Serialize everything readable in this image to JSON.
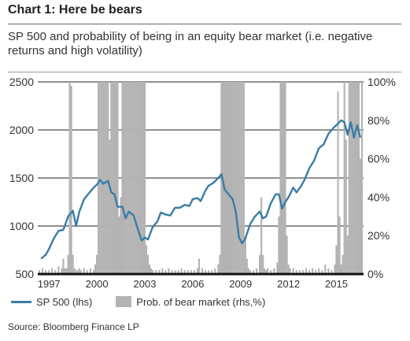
{
  "title": "Chart 1: Here be bears",
  "subtitle": "SP 500 and probability of being in an equity bear market (i.e. negative returns and high volatility)",
  "source": "Source: Bloomberg Finance LP",
  "colors": {
    "sp500": "#3a7ca5",
    "probability": "#b3b3b3",
    "gridline": "#222222",
    "baseline": "#111111"
  },
  "chart_data": {
    "type": "line",
    "legend_position": "bottom",
    "legend": {
      "sp500": "SP 500 (lhs)",
      "probability": "Prob. of bear market (rhs,%)"
    },
    "x_ticks": [
      "1997",
      "2000",
      "2003",
      "2006",
      "2009",
      "2012",
      "2015"
    ],
    "x_tick_values": [
      1997,
      2000,
      2003,
      2006,
      2009,
      2012,
      2015
    ],
    "xlim": [
      1996.3,
      2016.7
    ],
    "left_axis": {
      "ylim": [
        500,
        2500
      ],
      "ticks": [
        500,
        1000,
        1500,
        2000,
        2500
      ],
      "tick_labels": [
        "500",
        "1000",
        "1500",
        "2000",
        "2500"
      ]
    },
    "right_axis": {
      "ylim": [
        0,
        100
      ],
      "ticks": [
        0,
        20,
        40,
        60,
        80,
        100
      ],
      "tick_labels": [
        "0%",
        "20%",
        "40%",
        "60%",
        "80%",
        "100%"
      ]
    },
    "gridlines": [
      1000,
      1500,
      2000,
      2500
    ],
    "series": [
      {
        "name": "SP 500 (lhs)",
        "axis": "left",
        "style": "line",
        "x": [
          1996.5,
          1996.8,
          1997.0,
          1997.3,
          1997.6,
          1997.9,
          1998.2,
          1998.5,
          1998.7,
          1998.9,
          1999.2,
          1999.5,
          1999.8,
          2000.0,
          2000.2,
          2000.4,
          2000.7,
          2000.9,
          2001.1,
          2001.3,
          2001.6,
          2001.8,
          2002.0,
          2002.3,
          2002.6,
          2002.8,
          2003.0,
          2003.2,
          2003.5,
          2003.8,
          2004.0,
          2004.3,
          2004.6,
          2004.9,
          2005.2,
          2005.5,
          2005.8,
          2006.0,
          2006.3,
          2006.5,
          2006.8,
          2007.0,
          2007.3,
          2007.6,
          2007.8,
          2008.0,
          2008.3,
          2008.5,
          2008.7,
          2008.9,
          2009.1,
          2009.3,
          2009.6,
          2009.9,
          2010.2,
          2010.4,
          2010.6,
          2010.9,
          2011.2,
          2011.4,
          2011.6,
          2011.8,
          2012.0,
          2012.3,
          2012.5,
          2012.8,
          2013.0,
          2013.3,
          2013.6,
          2013.9,
          2014.2,
          2014.5,
          2014.8,
          2015.0,
          2015.3,
          2015.5,
          2015.7,
          2015.9,
          2016.1,
          2016.3,
          2016.5
        ],
        "values": [
          660,
          700,
          760,
          870,
          950,
          960,
          1100,
          1160,
          1000,
          1150,
          1280,
          1340,
          1400,
          1430,
          1480,
          1440,
          1470,
          1350,
          1330,
          1200,
          1200,
          1080,
          1150,
          1110,
          950,
          850,
          880,
          860,
          990,
          1050,
          1140,
          1120,
          1110,
          1190,
          1190,
          1220,
          1210,
          1280,
          1290,
          1260,
          1370,
          1420,
          1450,
          1500,
          1540,
          1380,
          1320,
          1280,
          1150,
          880,
          820,
          870,
          1020,
          1100,
          1150,
          1080,
          1100,
          1240,
          1330,
          1330,
          1180,
          1250,
          1300,
          1400,
          1350,
          1420,
          1480,
          1600,
          1680,
          1810,
          1850,
          1960,
          2020,
          2050,
          2100,
          2080,
          1950,
          2080,
          1920,
          2050,
          1920
        ]
      },
      {
        "name": "Prob. of bear market (rhs,%)",
        "axis": "right",
        "style": "bars",
        "x": [
          1996.4,
          1996.6,
          1996.8,
          1997.0,
          1997.2,
          1997.4,
          1997.6,
          1997.8,
          1997.9,
          1998.0,
          1998.1,
          1998.2,
          1998.3,
          1998.4,
          1998.5,
          1998.6,
          1998.7,
          1998.8,
          1998.9,
          1999.0,
          1999.2,
          1999.4,
          1999.6,
          1999.8,
          1999.9,
          2000.0,
          2000.1,
          2000.2,
          2000.3,
          2000.4,
          2000.5,
          2000.6,
          2000.7,
          2000.8,
          2000.9,
          2001.0,
          2001.1,
          2001.2,
          2001.3,
          2001.4,
          2001.5,
          2001.6,
          2001.7,
          2001.8,
          2001.9,
          2002.0,
          2002.1,
          2002.2,
          2002.3,
          2002.4,
          2002.5,
          2002.6,
          2002.7,
          2002.8,
          2002.9,
          2003.0,
          2003.1,
          2003.2,
          2003.3,
          2003.4,
          2003.5,
          2003.7,
          2003.9,
          2004.1,
          2004.3,
          2004.5,
          2004.7,
          2004.9,
          2005.1,
          2005.3,
          2005.5,
          2005.7,
          2005.9,
          2006.1,
          2006.3,
          2006.4,
          2006.6,
          2006.8,
          2007.0,
          2007.2,
          2007.4,
          2007.6,
          2007.7,
          2007.8,
          2007.9,
          2008.0,
          2008.1,
          2008.2,
          2008.3,
          2008.4,
          2008.5,
          2008.6,
          2008.7,
          2008.8,
          2008.9,
          2009.0,
          2009.1,
          2009.2,
          2009.3,
          2009.4,
          2009.5,
          2009.6,
          2009.8,
          2010.0,
          2010.2,
          2010.3,
          2010.4,
          2010.5,
          2010.6,
          2010.7,
          2010.9,
          2011.1,
          2011.3,
          2011.4,
          2011.5,
          2011.6,
          2011.7,
          2011.8,
          2011.9,
          2012.0,
          2012.1,
          2012.3,
          2012.5,
          2012.7,
          2012.9,
          2013.1,
          2013.3,
          2013.5,
          2013.7,
          2013.9,
          2014.1,
          2014.3,
          2014.5,
          2014.7,
          2014.9,
          2015.0,
          2015.1,
          2015.2,
          2015.3,
          2015.4,
          2015.5,
          2015.6,
          2015.7,
          2015.8,
          2015.9,
          2016.0,
          2016.1,
          2016.2,
          2016.3,
          2016.4,
          2016.5,
          2016.6
        ],
        "values": [
          2,
          3,
          2,
          2,
          3,
          2,
          4,
          3,
          8,
          3,
          3,
          10,
          100,
          98,
          10,
          3,
          2,
          2,
          3,
          2,
          3,
          2,
          3,
          2,
          5,
          10,
          100,
          100,
          100,
          100,
          100,
          100,
          100,
          70,
          100,
          100,
          100,
          100,
          100,
          30,
          40,
          100,
          100,
          100,
          100,
          100,
          100,
          100,
          100,
          100,
          100,
          100,
          100,
          100,
          100,
          100,
          15,
          10,
          5,
          3,
          2,
          2,
          2,
          3,
          2,
          3,
          2,
          2,
          2,
          3,
          2,
          2,
          2,
          2,
          3,
          8,
          3,
          2,
          2,
          2,
          3,
          5,
          10,
          100,
          100,
          100,
          100,
          100,
          100,
          100,
          100,
          100,
          100,
          100,
          100,
          100,
          100,
          100,
          20,
          8,
          3,
          2,
          2,
          3,
          10,
          40,
          10,
          3,
          2,
          3,
          2,
          3,
          6,
          30,
          100,
          100,
          100,
          100,
          20,
          5,
          3,
          3,
          2,
          2,
          2,
          3,
          2,
          3,
          2,
          3,
          2,
          5,
          3,
          2,
          5,
          15,
          95,
          30,
          5,
          10,
          100,
          70,
          20,
          100,
          100,
          100,
          100,
          100,
          100,
          100,
          60,
          100
        ]
      }
    ]
  }
}
